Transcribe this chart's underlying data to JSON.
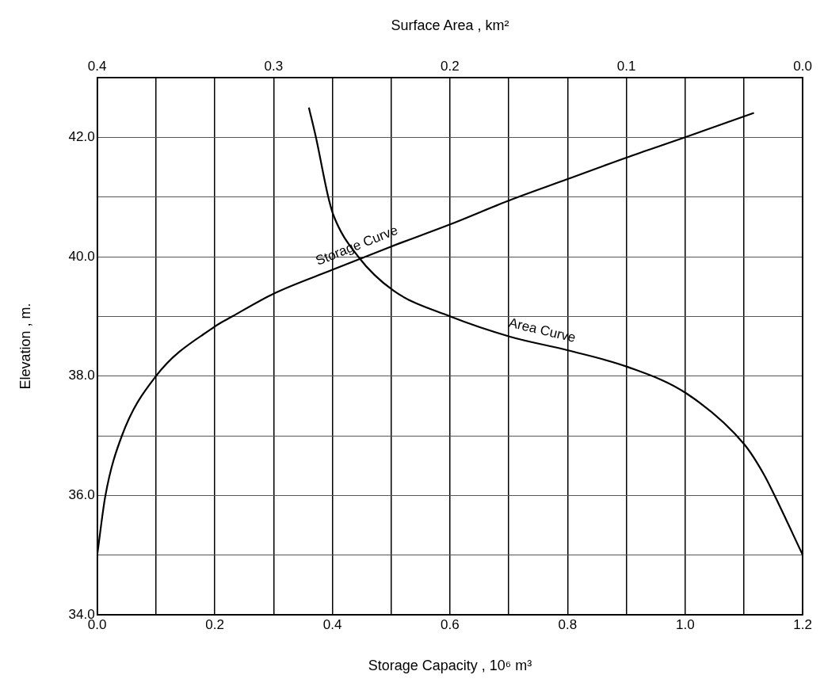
{
  "chart_data": {
    "type": "line",
    "xlabel": "Storage Capacity , 10⁶ m³",
    "x2label": "Surface Area , km²",
    "ylabel": "Elevation , m.",
    "xlim": [
      0,
      1.2
    ],
    "xticks": [
      {
        "value": 0,
        "label": "0.0"
      },
      {
        "value": 0.1,
        "label": null
      },
      {
        "value": 0.2,
        "label": "0.2"
      },
      {
        "value": 0.3,
        "label": null
      },
      {
        "value": 0.4,
        "label": "0.4"
      },
      {
        "value": 0.5,
        "label": null
      },
      {
        "value": 0.6,
        "label": "0.6"
      },
      {
        "value": 0.7,
        "label": null
      },
      {
        "value": 0.8,
        "label": "0.8"
      },
      {
        "value": 0.9,
        "label": null
      },
      {
        "value": 1.0,
        "label": "1.0"
      },
      {
        "value": 1.1,
        "label": null
      },
      {
        "value": 1.2,
        "label": "1.2"
      }
    ],
    "x2lim": [
      0.4,
      0.0
    ],
    "x2ticks": [
      {
        "value": 0.4,
        "label": "0.4"
      },
      {
        "value": 0.3,
        "label": "0.3"
      },
      {
        "value": 0.2,
        "label": "0.2"
      },
      {
        "value": 0.1,
        "label": "0.1"
      },
      {
        "value": 0.0,
        "label": "0.0"
      }
    ],
    "ylim": [
      34,
      43
    ],
    "yticks": [
      {
        "value": 34,
        "label": "34.0"
      },
      {
        "value": 35,
        "label": null
      },
      {
        "value": 36,
        "label": "36.0"
      },
      {
        "value": 37,
        "label": null
      },
      {
        "value": 38,
        "label": "38.0"
      },
      {
        "value": 39,
        "label": null
      },
      {
        "value": 40,
        "label": "40.0"
      },
      {
        "value": 41,
        "label": null
      },
      {
        "value": 42,
        "label": "42.0"
      }
    ],
    "grid": true,
    "legend": false,
    "marker": "none",
    "line_style": "solid",
    "series": [
      {
        "name": "Storage Curve",
        "color": "#000000",
        "x": [
          0.0,
          0.014,
          0.042,
          0.1,
          0.2,
          0.23,
          0.3,
          0.4,
          0.5,
          0.6,
          0.7,
          0.8,
          0.9,
          1.0,
          1.117
        ],
        "values": [
          35.0,
          36.0,
          37.0,
          38.0,
          38.83,
          39.0,
          39.38,
          39.78,
          40.17,
          40.54,
          40.94,
          41.3,
          41.66,
          42.0,
          42.41
        ]
      },
      {
        "name": "Area Curve",
        "color": "#000000",
        "axis": "x2",
        "x": [
          0.28,
          0.276,
          0.269,
          0.266,
          0.252,
          0.232,
          0.2,
          0.166,
          0.133,
          0.099,
          0.066,
          0.033,
          0.022,
          0.016,
          0.0
        ],
        "values": [
          42.5,
          42.0,
          41.0,
          40.69,
          40.0,
          39.43,
          39.0,
          38.66,
          38.43,
          38.15,
          37.71,
          36.85,
          36.35,
          36.0,
          35.0
        ]
      }
    ]
  }
}
